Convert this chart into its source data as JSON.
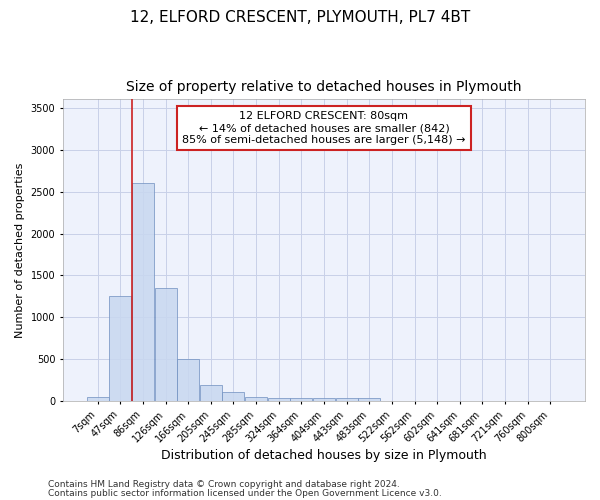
{
  "title": "12, ELFORD CRESCENT, PLYMOUTH, PL7 4BT",
  "subtitle": "Size of property relative to detached houses in Plymouth",
  "xlabel": "Distribution of detached houses by size in Plymouth",
  "ylabel": "Number of detached properties",
  "bin_labels": [
    "7sqm",
    "47sqm",
    "86sqm",
    "126sqm",
    "166sqm",
    "205sqm",
    "245sqm",
    "285sqm",
    "324sqm",
    "364sqm",
    "404sqm",
    "443sqm",
    "483sqm",
    "522sqm",
    "562sqm",
    "602sqm",
    "641sqm",
    "681sqm",
    "721sqm",
    "760sqm",
    "800sqm"
  ],
  "bar_heights": [
    50,
    1250,
    2600,
    1350,
    500,
    200,
    110,
    50,
    40,
    40,
    40,
    40,
    40,
    0,
    0,
    0,
    0,
    0,
    0,
    0,
    0
  ],
  "bar_color": "#c8d8f0",
  "bar_edgecolor": "#7090c0",
  "bar_alpha": 0.85,
  "vline_color": "#cc2222",
  "ylim": [
    0,
    3600
  ],
  "yticks": [
    0,
    500,
    1000,
    1500,
    2000,
    2500,
    3000,
    3500
  ],
  "annotation_text": "12 ELFORD CRESCENT: 80sqm\n← 14% of detached houses are smaller (842)\n85% of semi-detached houses are larger (5,148) →",
  "footer1": "Contains HM Land Registry data © Crown copyright and database right 2024.",
  "footer2": "Contains public sector information licensed under the Open Government Licence v3.0.",
  "bg_color": "#eef2fc",
  "grid_color": "#c8d0e8",
  "title_fontsize": 11,
  "subtitle_fontsize": 10,
  "ylabel_fontsize": 8,
  "xlabel_fontsize": 9,
  "tick_fontsize": 7,
  "annotation_fontsize": 8,
  "footer_fontsize": 6.5
}
